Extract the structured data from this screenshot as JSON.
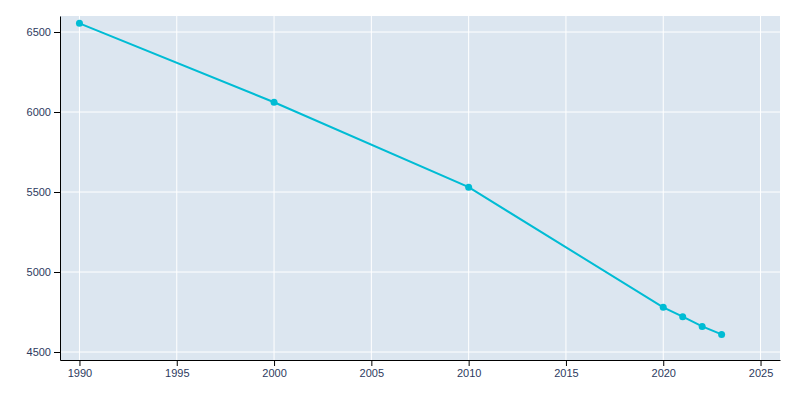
{
  "chart_data": {
    "type": "line",
    "x": [
      1990,
      2000,
      2010,
      2020,
      2021,
      2022,
      2023
    ],
    "values": [
      6554,
      6061,
      5530,
      4779,
      4721,
      4660,
      4610
    ],
    "color": "#00bcd4",
    "marker": "circle",
    "xlim": [
      1989,
      2026
    ],
    "ylim": [
      4450,
      6600
    ],
    "xticks": [
      1990,
      1995,
      2000,
      2005,
      2010,
      2015,
      2020,
      2025
    ],
    "yticks": [
      4500,
      5000,
      5500,
      6000,
      6500
    ],
    "grid": true
  }
}
